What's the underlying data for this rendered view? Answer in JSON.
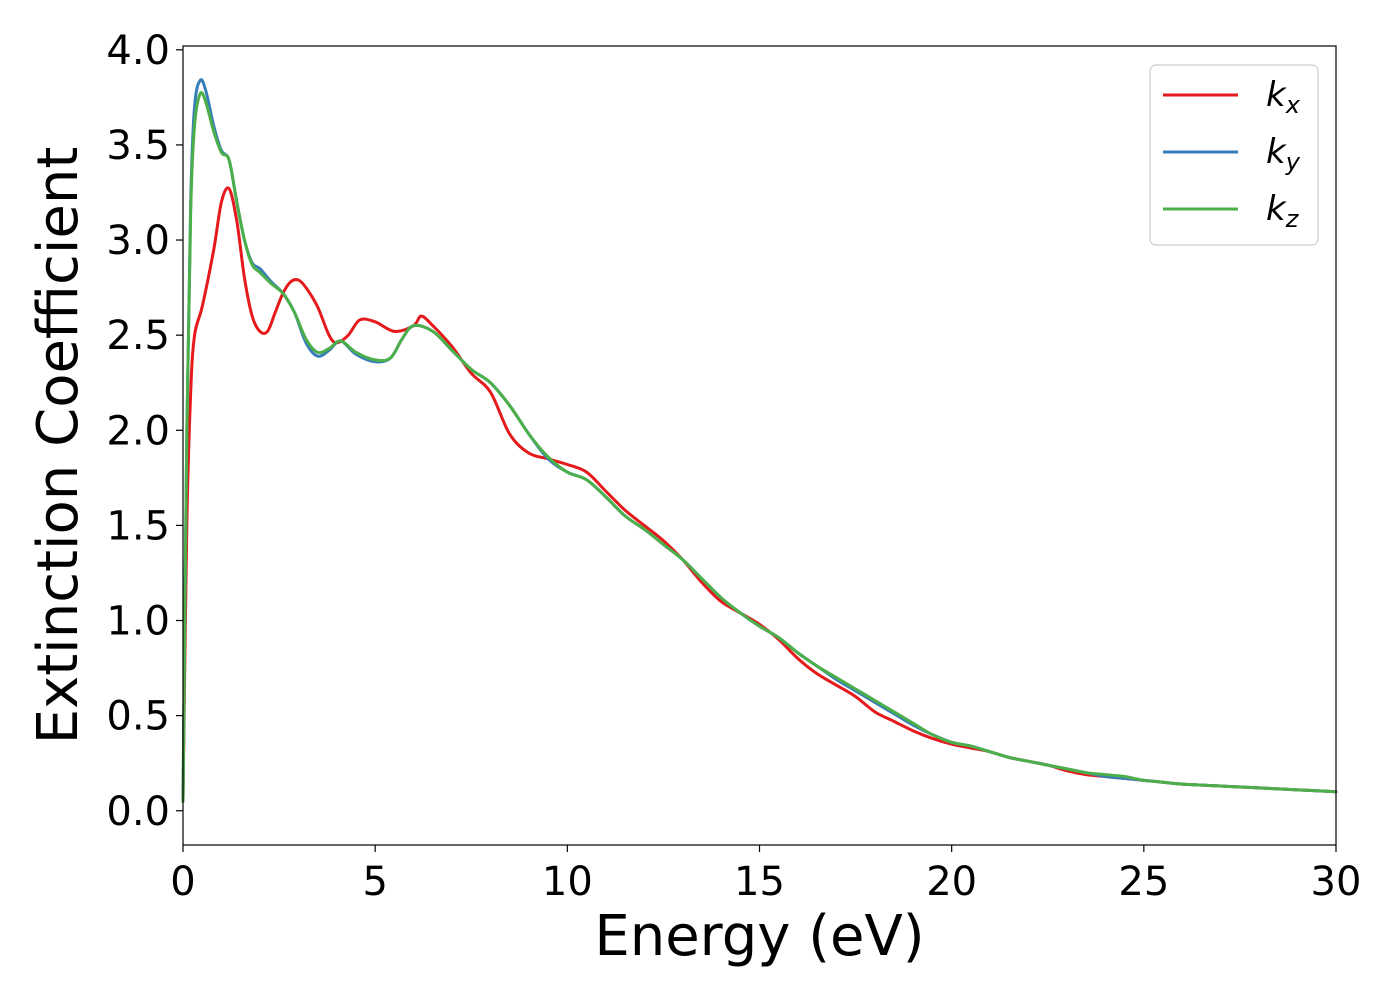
{
  "chart_data": {
    "type": "line",
    "title": "",
    "xlabel": "Energy (eV)",
    "ylabel": "Extinction Coefficient",
    "xlim": [
      0,
      30
    ],
    "ylim": [
      -0.18,
      4.02
    ],
    "xticks": [
      0,
      5,
      10,
      15,
      20,
      25,
      30
    ],
    "xtick_labels": [
      "0",
      "5",
      "10",
      "15",
      "20",
      "25",
      "30"
    ],
    "yticks": [
      0.0,
      0.5,
      1.0,
      1.5,
      2.0,
      2.5,
      3.0,
      3.5,
      4.0
    ],
    "ytick_labels": [
      "0.0",
      "0.5",
      "1.0",
      "1.5",
      "2.0",
      "2.5",
      "3.0",
      "3.5",
      "4.0"
    ],
    "grid": false,
    "legend_position": "top-right",
    "series": [
      {
        "name": "k",
        "subscript": "x",
        "color": "#e41a1c",
        "x": [
          0,
          0.1,
          0.2,
          0.3,
          0.5,
          0.8,
          1.0,
          1.2,
          1.4,
          1.6,
          1.8,
          2.0,
          2.2,
          2.4,
          2.6,
          2.8,
          3.0,
          3.2,
          3.5,
          3.8,
          4.0,
          4.3,
          4.6,
          5.0,
          5.5,
          6.0,
          6.2,
          6.5,
          7.0,
          7.5,
          8.0,
          8.5,
          9.0,
          9.5,
          10.0,
          10.5,
          11.0,
          11.5,
          12.0,
          12.5,
          13.0,
          13.5,
          14.0,
          14.5,
          15.0,
          15.5,
          16.0,
          16.5,
          17.0,
          17.5,
          18.0,
          18.5,
          19.0,
          19.5,
          20.0,
          20.5,
          21.0,
          21.5,
          22.0,
          22.5,
          23.0,
          23.5,
          24.0,
          24.5,
          25.0,
          25.5,
          26.0,
          27.0,
          28.0,
          29.0,
          30.0
        ],
        "y": [
          0.05,
          1.5,
          2.2,
          2.5,
          2.65,
          2.95,
          3.2,
          3.27,
          3.1,
          2.8,
          2.6,
          2.52,
          2.52,
          2.62,
          2.72,
          2.78,
          2.79,
          2.75,
          2.65,
          2.5,
          2.46,
          2.5,
          2.58,
          2.57,
          2.52,
          2.55,
          2.6,
          2.55,
          2.44,
          2.3,
          2.2,
          1.98,
          1.88,
          1.85,
          1.82,
          1.78,
          1.68,
          1.58,
          1.5,
          1.42,
          1.32,
          1.2,
          1.1,
          1.04,
          0.98,
          0.9,
          0.8,
          0.72,
          0.66,
          0.6,
          0.52,
          0.47,
          0.42,
          0.38,
          0.35,
          0.33,
          0.31,
          0.28,
          0.26,
          0.24,
          0.21,
          0.19,
          0.18,
          0.17,
          0.16,
          0.15,
          0.14,
          0.13,
          0.12,
          0.11,
          0.1
        ]
      },
      {
        "name": "k",
        "subscript": "y",
        "color": "#377eb8",
        "x": [
          0,
          0.1,
          0.2,
          0.3,
          0.45,
          0.6,
          0.8,
          1.0,
          1.2,
          1.4,
          1.6,
          1.8,
          2.0,
          2.3,
          2.6,
          2.9,
          3.2,
          3.5,
          3.8,
          4.1,
          4.5,
          5.0,
          5.4,
          5.7,
          6.0,
          6.5,
          7.0,
          7.5,
          8.0,
          8.5,
          9.0,
          9.5,
          10.0,
          10.5,
          11.0,
          11.5,
          12.0,
          12.5,
          13.0,
          13.5,
          14.0,
          14.5,
          15.0,
          15.5,
          16.0,
          16.5,
          17.0,
          17.5,
          18.0,
          18.5,
          19.0,
          19.5,
          20.0,
          20.5,
          21.0,
          21.5,
          22.0,
          22.5,
          23.0,
          23.5,
          24.0,
          24.5,
          25.0,
          25.5,
          26.0,
          27.0,
          28.0,
          29.0,
          30.0
        ],
        "y": [
          0.05,
          2.0,
          3.2,
          3.7,
          3.84,
          3.78,
          3.6,
          3.47,
          3.42,
          3.2,
          3.0,
          2.88,
          2.85,
          2.78,
          2.72,
          2.62,
          2.46,
          2.39,
          2.42,
          2.47,
          2.4,
          2.36,
          2.38,
          2.48,
          2.55,
          2.52,
          2.42,
          2.32,
          2.25,
          2.13,
          1.98,
          1.85,
          1.78,
          1.74,
          1.65,
          1.55,
          1.48,
          1.4,
          1.32,
          1.22,
          1.12,
          1.04,
          0.97,
          0.91,
          0.83,
          0.76,
          0.69,
          0.63,
          0.57,
          0.51,
          0.45,
          0.4,
          0.36,
          0.34,
          0.31,
          0.28,
          0.26,
          0.24,
          0.22,
          0.2,
          0.18,
          0.17,
          0.16,
          0.15,
          0.14,
          0.13,
          0.12,
          0.11,
          0.1
        ]
      },
      {
        "name": "k",
        "subscript": "z",
        "color": "#4daf4a",
        "x": [
          0,
          0.1,
          0.2,
          0.3,
          0.45,
          0.6,
          0.8,
          1.0,
          1.2,
          1.4,
          1.6,
          1.8,
          2.0,
          2.3,
          2.6,
          2.9,
          3.2,
          3.5,
          3.8,
          4.1,
          4.5,
          5.0,
          5.4,
          5.7,
          6.0,
          6.5,
          7.0,
          7.5,
          8.0,
          8.5,
          9.0,
          9.5,
          10.0,
          10.5,
          11.0,
          11.5,
          12.0,
          12.5,
          13.0,
          13.5,
          14.0,
          14.5,
          15.0,
          15.5,
          16.0,
          16.5,
          17.0,
          17.5,
          18.0,
          18.5,
          19.0,
          19.5,
          20.0,
          20.5,
          21.0,
          21.5,
          22.0,
          22.5,
          23.0,
          23.5,
          24.0,
          24.5,
          25.0,
          25.5,
          26.0,
          27.0,
          28.0,
          29.0,
          30.0
        ],
        "y": [
          0.05,
          2.0,
          3.15,
          3.6,
          3.77,
          3.72,
          3.57,
          3.46,
          3.42,
          3.2,
          3.0,
          2.87,
          2.83,
          2.77,
          2.72,
          2.62,
          2.48,
          2.41,
          2.43,
          2.47,
          2.41,
          2.37,
          2.38,
          2.48,
          2.55,
          2.52,
          2.42,
          2.32,
          2.25,
          2.13,
          1.98,
          1.86,
          1.78,
          1.74,
          1.65,
          1.55,
          1.48,
          1.4,
          1.32,
          1.22,
          1.12,
          1.04,
          0.97,
          0.91,
          0.83,
          0.76,
          0.7,
          0.64,
          0.58,
          0.52,
          0.46,
          0.4,
          0.36,
          0.34,
          0.31,
          0.28,
          0.26,
          0.24,
          0.22,
          0.2,
          0.19,
          0.18,
          0.16,
          0.15,
          0.14,
          0.13,
          0.12,
          0.11,
          0.1
        ]
      }
    ]
  }
}
